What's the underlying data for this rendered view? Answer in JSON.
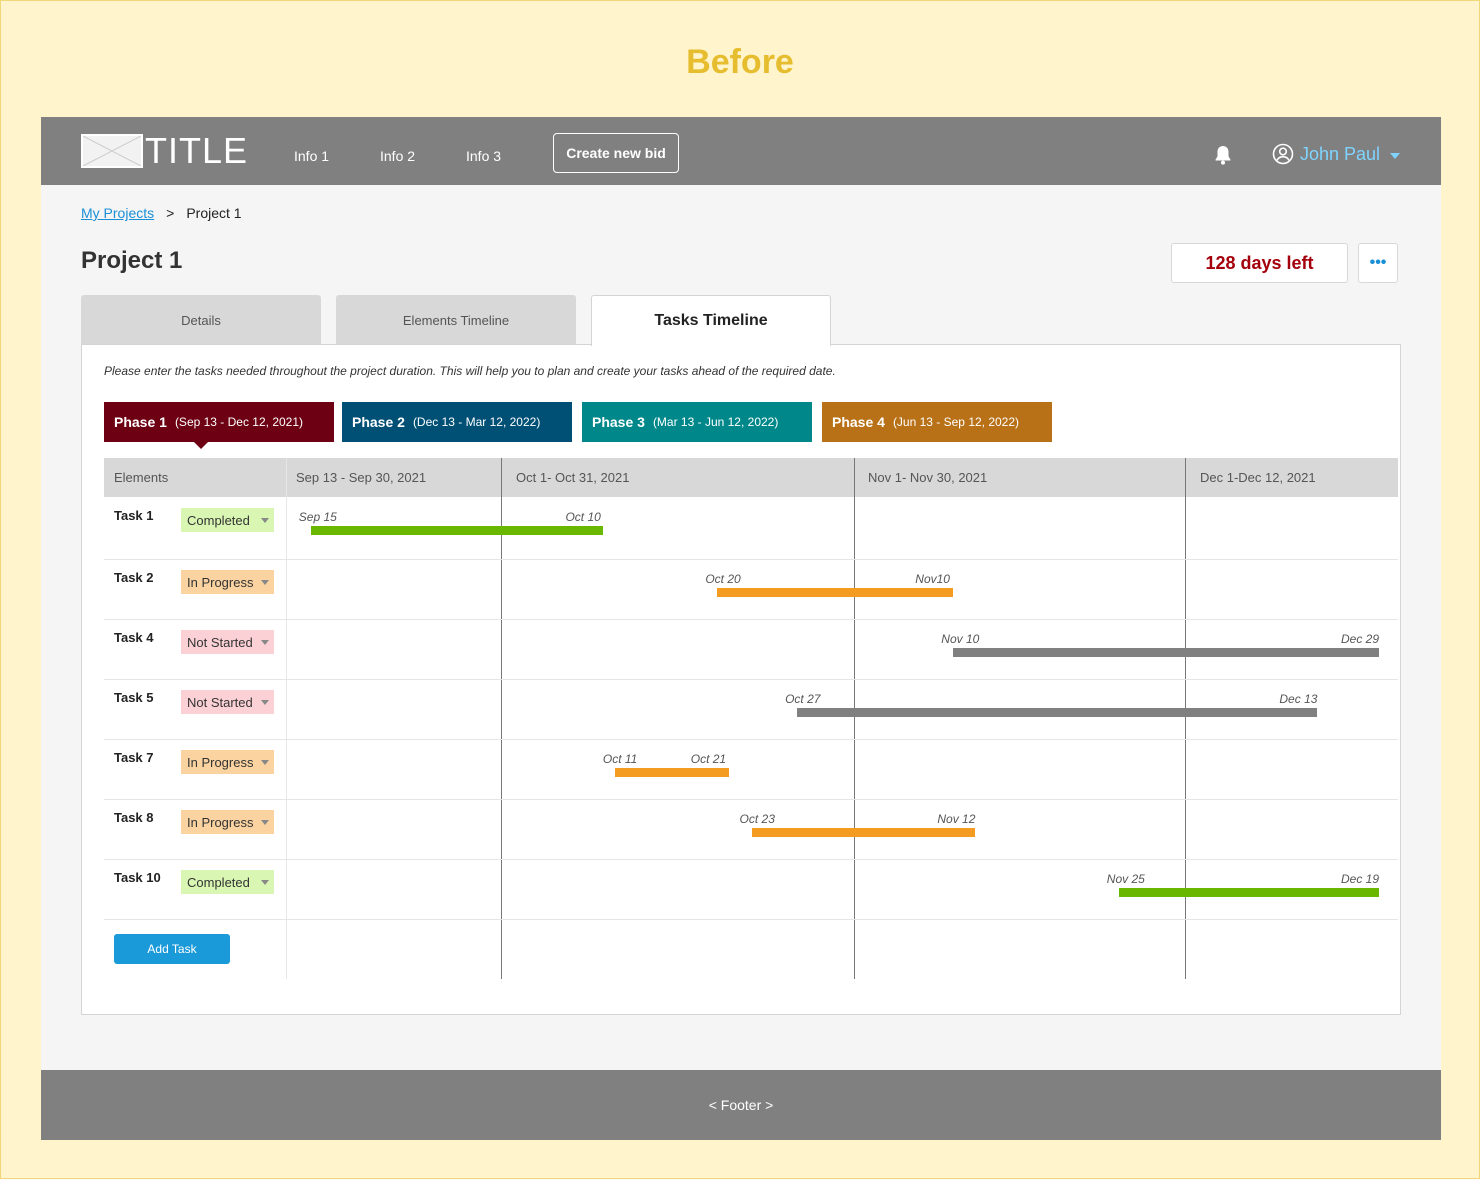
{
  "heading": "Before",
  "nav": {
    "logo_text": "TITLE",
    "links": [
      "Info 1",
      "Info 2",
      "Info 3"
    ],
    "create_button": "Create new bid",
    "user_name": "John Paul"
  },
  "breadcrumb": {
    "link": "My Projects",
    "separator": ">",
    "current": "Project 1"
  },
  "page_title": "Project 1",
  "days_left": "128 days left",
  "more_label": "•••",
  "tabs": [
    {
      "label": "Details"
    },
    {
      "label": "Elements Timeline"
    },
    {
      "label": "Tasks Timeline",
      "active": true
    }
  ],
  "instructions": "Please enter the tasks needed throughout the project duration. This will help you to plan and create your tasks ahead of the required date.",
  "phases": [
    {
      "name": "Phase 1",
      "range": "(Sep 13 - Dec 12, 2021)",
      "color": "#6d0012"
    },
    {
      "name": "Phase 2",
      "range": "(Dec 13 - Mar 12, 2022)",
      "color": "#005076"
    },
    {
      "name": "Phase 3",
      "range": "(Mar 13 - Jun 12, 2022)",
      "color": "#00878a"
    },
    {
      "name": "Phase 4",
      "range": "(Jun 13 - Sep 12, 2022)",
      "color": "#b87117"
    }
  ],
  "grid": {
    "elements_header": "Elements",
    "months": [
      "Sep 13 - Sep 30, 2021",
      "Oct 1- Oct 31, 2021",
      "Nov 1- Nov 30, 2021",
      "Dec 1-Dec 12, 2021"
    ]
  },
  "tasks": [
    {
      "name": "Task 1",
      "status": "Completed",
      "start_label": "Sep 15",
      "end_label": "Oct 10"
    },
    {
      "name": "Task 2",
      "status": "In Progress",
      "start_label": "Oct 20",
      "end_label": "Nov10"
    },
    {
      "name": "Task 4",
      "status": "Not Started",
      "start_label": "Nov 10",
      "end_label": "Dec 29"
    },
    {
      "name": "Task 5",
      "status": "Not Started",
      "start_label": "Oct 27",
      "end_label": "Dec 13"
    },
    {
      "name": "Task 7",
      "status": "In Progress",
      "start_label": "Oct 11",
      "end_label": "Oct 21"
    },
    {
      "name": "Task 8",
      "status": "In Progress",
      "start_label": "Oct 23",
      "end_label": "Nov 12"
    },
    {
      "name": "Task 10",
      "status": "Completed",
      "start_label": "Nov 25",
      "end_label": "Dec 19"
    }
  ],
  "status_colors": {
    "Completed": {
      "bg": "#d9f7b3",
      "bar": "#6ab700"
    },
    "In Progress": {
      "bg": "#fad3a0",
      "bar": "#f39c21"
    },
    "Not Started": {
      "bg": "#fbd1d6",
      "bar": "#808080"
    }
  },
  "add_task_label": "Add Task",
  "footer": "< Footer >"
}
